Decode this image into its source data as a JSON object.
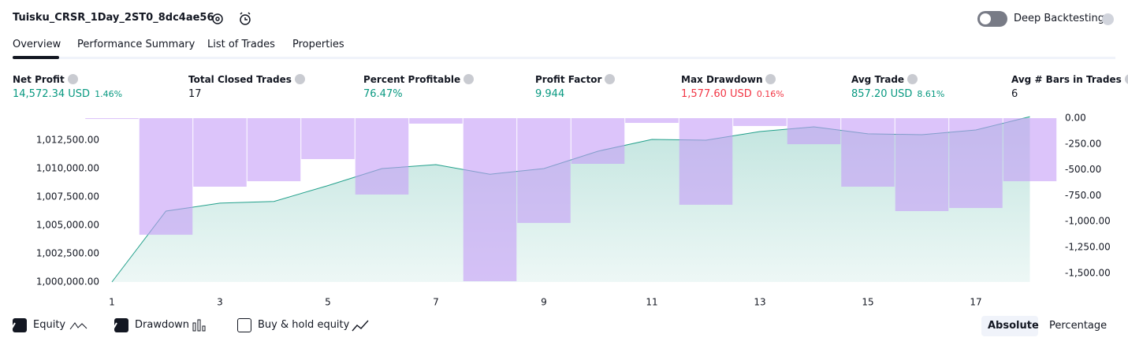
{
  "header": {
    "title": "Tuisku_CRSR_1Day_2ST0_8dc4ae56",
    "deep_backtesting": "Deep Backtesting"
  },
  "tabs": [
    "Overview",
    "Performance Summary",
    "List of Trades",
    "Properties"
  ],
  "metrics": [
    {
      "label": "Net Profit",
      "value": "14,572.34 USD",
      "percent": "1.46%",
      "tone": "positive"
    },
    {
      "label": "Total Closed Trades",
      "value": "17",
      "tone": "neutral"
    },
    {
      "label": "Percent Profitable",
      "value": "76.47%",
      "tone": "positive"
    },
    {
      "label": "Profit Factor",
      "value": "9.944",
      "tone": "positive"
    },
    {
      "label": "Max Drawdown",
      "value": "1,577.60 USD",
      "percent": "0.16%",
      "tone": "negative"
    },
    {
      "label": "Avg Trade",
      "value": "857.20 USD",
      "percent": "8.61%",
      "tone": "positive"
    },
    {
      "label": "Avg # Bars in Trades",
      "value": "6",
      "tone": "neutral"
    }
  ],
  "chart_data": {
    "type": "line",
    "x": [
      1,
      2,
      3,
      4,
      5,
      6,
      7,
      8,
      9,
      10,
      11,
      12,
      13,
      14,
      15,
      16,
      17,
      18
    ],
    "xlim": [
      0.5,
      18.5
    ],
    "xticks": [
      1,
      3,
      5,
      7,
      9,
      11,
      13,
      15,
      17
    ],
    "ylim": [
      1000000,
      1014444
    ],
    "yticks": [
      {
        "value": 1000000,
        "label": "1,000,000.00"
      },
      {
        "value": 1002500,
        "label": "1,002,500.00"
      },
      {
        "value": 1005000,
        "label": "1,005,000.00"
      },
      {
        "value": 1007500,
        "label": "1,007,500.00"
      },
      {
        "value": 1010000,
        "label": "1,010,000.00"
      },
      {
        "value": 1012500,
        "label": "1,012,500.00"
      }
    ],
    "y2lim": [
      -1585,
      0
    ],
    "y2ticks": [
      {
        "value": 0,
        "label": "0.00"
      },
      {
        "value": -250,
        "label": "-250.00"
      },
      {
        "value": -500,
        "label": "-500.00"
      },
      {
        "value": -750,
        "label": "-750.00"
      },
      {
        "value": -1000,
        "label": "-1,000.00"
      },
      {
        "value": -1250,
        "label": "-1,250.00"
      },
      {
        "value": -1500,
        "label": "-1,500.00"
      }
    ],
    "series": [
      {
        "name": "Equity",
        "type": "line",
        "color": "#22a08b",
        "checked": true,
        "values": [
          1000000,
          1006250,
          1006950,
          1007100,
          1008500,
          1010000,
          1010350,
          1009500,
          1010000,
          1011530,
          1012570,
          1012500,
          1013260,
          1013680,
          1013060,
          1012990,
          1013400,
          1014572.34
        ]
      },
      {
        "name": "Drawdown",
        "type": "bar",
        "axis": "y2",
        "color": "#c59cf7",
        "checked": true,
        "values": [
          -8,
          -1128,
          -663,
          -610,
          -396,
          -739,
          -53,
          -1577.6,
          -1014,
          -442,
          -46,
          -838,
          -76,
          -252,
          -663,
          -899,
          -869,
          -610
        ]
      }
    ],
    "extra_legend": {
      "name": "Buy & hold equity",
      "checked": false
    }
  },
  "controls": {
    "absolute": "Absolute",
    "percentage": "Percentage"
  }
}
